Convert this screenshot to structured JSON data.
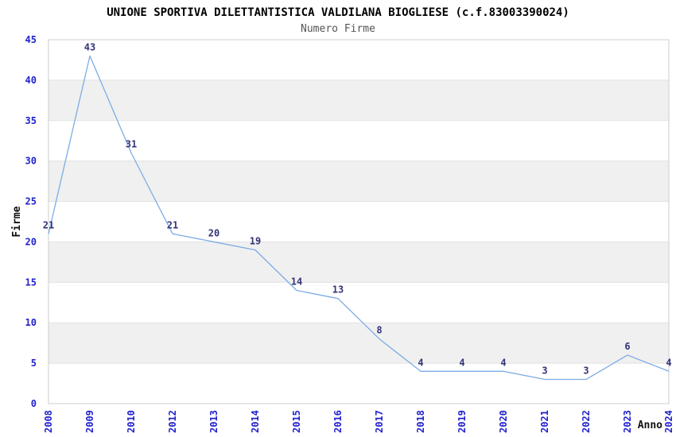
{
  "chart_data": {
    "type": "line",
    "title": "UNIONE SPORTIVA DILETTANTISTICA VALDILANA BIOGLIESE (c.f.83003390024)",
    "subtitle": "Numero Firme",
    "xlabel": "Anno",
    "ylabel": "Firme",
    "categories": [
      "2008",
      "2009",
      "2010",
      "2012",
      "2013",
      "2014",
      "2015",
      "2016",
      "2017",
      "2018",
      "2019",
      "2020",
      "2021",
      "2022",
      "2023",
      "2024"
    ],
    "values": [
      21,
      43,
      31,
      21,
      20,
      19,
      14,
      13,
      8,
      4,
      4,
      4,
      3,
      3,
      6,
      4
    ],
    "point_labels": [
      "21",
      "43",
      "31",
      "21",
      "20",
      "19",
      "14",
      "13",
      "8",
      "4",
      "4",
      "4",
      "3",
      "3",
      "6",
      "4"
    ],
    "ylim": [
      0,
      45
    ],
    "yticks": [
      0,
      5,
      10,
      15,
      20,
      25,
      30,
      35,
      40,
      45
    ],
    "band_rows": [
      [
        5,
        10
      ],
      [
        15,
        20
      ],
      [
        25,
        30
      ],
      [
        35,
        40
      ]
    ],
    "grid": true,
    "legend": "none",
    "x_tick_rotation": -90,
    "colors": {
      "line": "#7CACE5",
      "tick_label": "#2121CC",
      "point_label": "#333377",
      "band": "#F0F0F0",
      "grid": "#E2E2E2",
      "plot_border": "#CCCCCC",
      "title": "#000000",
      "subtitle": "#555555",
      "axis_label": "#111111",
      "background": "#FFFFFF"
    }
  }
}
